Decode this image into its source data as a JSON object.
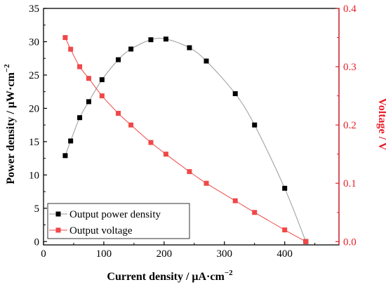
{
  "chart_data": {
    "type": "line",
    "xlabel": "Current density / μA·cm",
    "xlabel_exp": "−2",
    "ylabel_left": "Power density / μW·cm",
    "ylabel_left_exp": "−2",
    "ylabel_right": "Voltage / V",
    "xlim": [
      0,
      490
    ],
    "ylim_left": [
      -0.5,
      35
    ],
    "ylim_right": [
      -0.0057,
      0.4
    ],
    "x_ticks": [
      0,
      100,
      200,
      300,
      400
    ],
    "y_left_ticks": [
      0,
      5,
      10,
      15,
      20,
      25,
      30,
      35
    ],
    "y_right_ticks": [
      0.0,
      0.1,
      0.2,
      0.3,
      0.4
    ],
    "x_tick_labels": [
      "0",
      "100",
      "200",
      "300",
      "400"
    ],
    "y_left_tick_labels": [
      "0",
      "5",
      "10",
      "15",
      "20",
      "25",
      "30",
      "35"
    ],
    "y_right_tick_labels": [
      "0.0",
      "0.1",
      "0.2",
      "0.3",
      "0.4"
    ],
    "grid": false,
    "legend_position": "bottom-left",
    "series": [
      {
        "name": "Output power density",
        "axis": "left",
        "color": "#000000",
        "line_color": "#9a9a9a",
        "marker": "square",
        "points": [
          [
            36,
            12.9
          ],
          [
            45,
            15.1
          ],
          [
            60,
            18.6
          ],
          [
            75,
            21.0
          ],
          [
            97,
            24.3
          ],
          [
            124,
            27.3
          ],
          [
            145,
            28.9
          ],
          [
            178,
            30.3
          ],
          [
            203,
            30.4
          ],
          [
            242,
            29.1
          ],
          [
            270,
            27.1
          ],
          [
            318,
            22.2
          ],
          [
            350,
            17.5
          ],
          [
            400,
            8.0
          ],
          [
            435,
            0.0
          ]
        ]
      },
      {
        "name": "Output voltage",
        "axis": "right",
        "color": "#f04848",
        "line_color": "#f04848",
        "marker": "square",
        "points": [
          [
            36,
            0.35
          ],
          [
            45,
            0.33
          ],
          [
            60,
            0.3
          ],
          [
            75,
            0.28
          ],
          [
            97,
            0.25
          ],
          [
            124,
            0.22
          ],
          [
            145,
            0.2
          ],
          [
            178,
            0.17
          ],
          [
            203,
            0.15
          ],
          [
            242,
            0.12
          ],
          [
            270,
            0.1
          ],
          [
            318,
            0.07
          ],
          [
            350,
            0.05
          ],
          [
            400,
            0.02
          ],
          [
            435,
            0.0
          ]
        ]
      }
    ]
  }
}
